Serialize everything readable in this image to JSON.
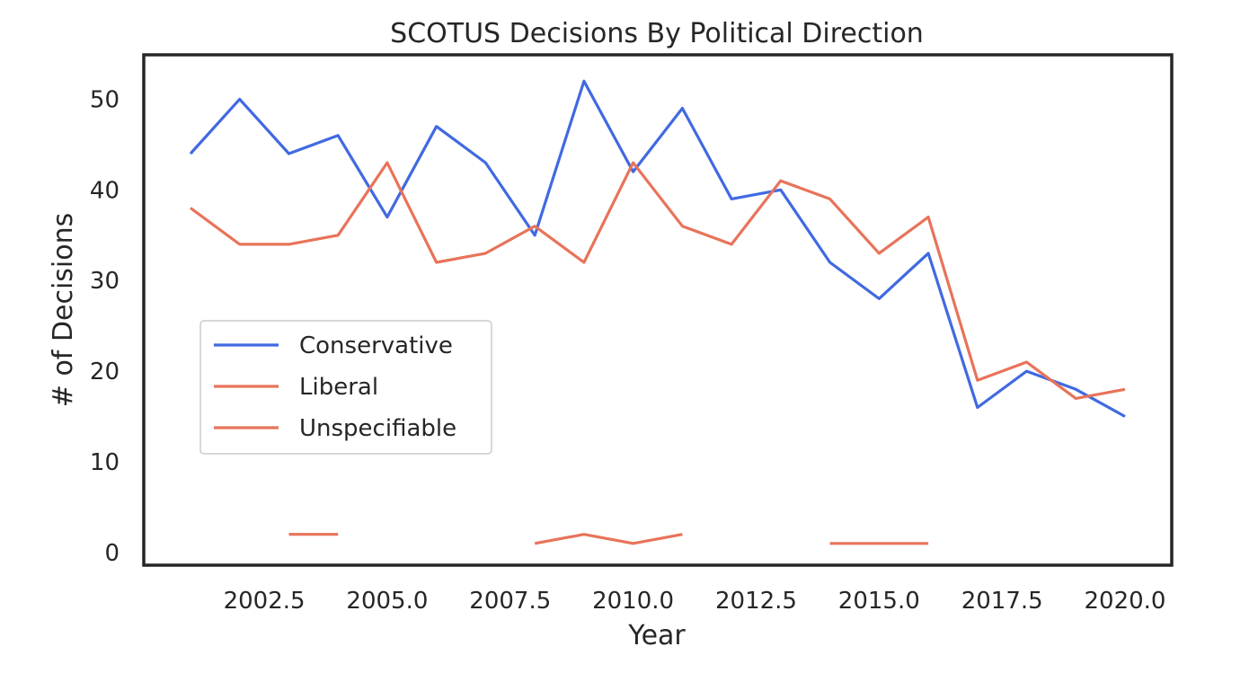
{
  "chart_data": {
    "type": "line",
    "title": "SCOTUS Decisions By Political Direction",
    "xlabel": "Year",
    "ylabel": "# of Decisions",
    "xlim": [
      2000.05,
      2020.95
    ],
    "ylim": [
      -1.4,
      54.9
    ],
    "xticks": [
      2002.5,
      2005.0,
      2007.5,
      2010.0,
      2012.5,
      2015.0,
      2017.5,
      2020.0
    ],
    "xtick_labels": [
      "2002.5",
      "2005.0",
      "2007.5",
      "2010.0",
      "2012.5",
      "2015.0",
      "2017.5",
      "2020.0"
    ],
    "yticks": [
      0,
      10,
      20,
      30,
      40,
      50
    ],
    "ytick_labels": [
      "0",
      "10",
      "20",
      "30",
      "40",
      "50"
    ],
    "grid": false,
    "legend_position": "center-left",
    "series": [
      {
        "name": "Conservative",
        "color": "#4169e1",
        "points": [
          [
            2001,
            44
          ],
          [
            2002,
            50
          ],
          [
            2003,
            44
          ],
          [
            2004,
            46
          ],
          [
            2005,
            37
          ],
          [
            2006,
            47
          ],
          [
            2007,
            43
          ],
          [
            2008,
            35
          ],
          [
            2009,
            52
          ],
          [
            2010,
            42
          ],
          [
            2011,
            49
          ],
          [
            2012,
            39
          ],
          [
            2013,
            40
          ],
          [
            2014,
            32
          ],
          [
            2015,
            28
          ],
          [
            2016,
            33
          ],
          [
            2017,
            16
          ],
          [
            2018,
            20
          ],
          [
            2019,
            18
          ],
          [
            2020,
            15
          ]
        ]
      },
      {
        "name": "Liberal",
        "color": "#e8735a",
        "points": [
          [
            2001,
            38
          ],
          [
            2002,
            34
          ],
          [
            2003,
            34
          ],
          [
            2004,
            35
          ],
          [
            2005,
            43
          ],
          [
            2006,
            32
          ],
          [
            2007,
            33
          ],
          [
            2008,
            36
          ],
          [
            2009,
            32
          ],
          [
            2010,
            43
          ],
          [
            2011,
            36
          ],
          [
            2012,
            34
          ],
          [
            2013,
            41
          ],
          [
            2014,
            39
          ],
          [
            2015,
            33
          ],
          [
            2016,
            37
          ],
          [
            2017,
            19
          ],
          [
            2018,
            21
          ],
          [
            2019,
            17
          ],
          [
            2020,
            18
          ]
        ]
      },
      {
        "name": "Unspecifiable",
        "color": "#e8735a",
        "points": [
          [
            2003,
            2
          ],
          [
            2004,
            2
          ],
          null,
          [
            2008,
            1
          ],
          [
            2009,
            2
          ],
          [
            2010,
            1
          ],
          [
            2011,
            2
          ],
          null,
          [
            2014,
            1
          ],
          [
            2015,
            1
          ],
          [
            2016,
            1
          ]
        ]
      }
    ]
  }
}
